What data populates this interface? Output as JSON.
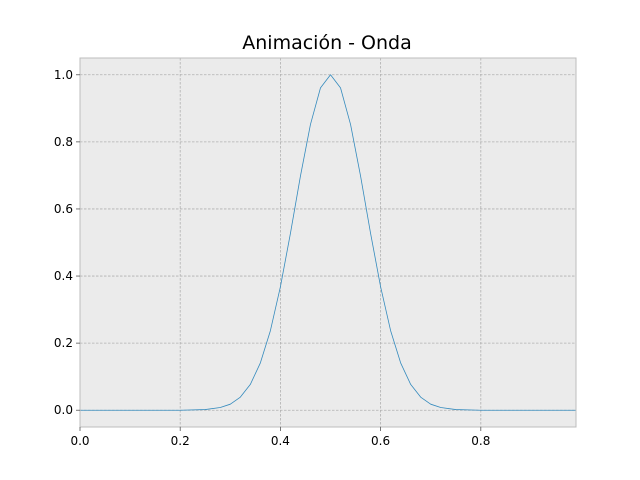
{
  "chart_data": {
    "type": "line",
    "title": "Animación - Onda",
    "xlabel": "",
    "ylabel": "",
    "xlim": [
      0.0,
      0.99
    ],
    "ylim": [
      -0.05,
      1.05
    ],
    "grid": true,
    "colors": {
      "background": "#ebebeb",
      "grid": "#b0b0b0",
      "line": "#348abd",
      "spine": "#bcbcbc"
    },
    "x_ticks": [
      {
        "value": 0.0,
        "label": "0.0"
      },
      {
        "value": 0.2,
        "label": "0.2"
      },
      {
        "value": 0.4,
        "label": "0.4"
      },
      {
        "value": 0.6,
        "label": "0.6"
      },
      {
        "value": 0.8,
        "label": "0.8"
      }
    ],
    "y_ticks": [
      {
        "value": 0.0,
        "label": "0.0"
      },
      {
        "value": 0.2,
        "label": "0.2"
      },
      {
        "value": 0.4,
        "label": "0.4"
      },
      {
        "value": 0.6,
        "label": "0.6"
      },
      {
        "value": 0.8,
        "label": "0.8"
      },
      {
        "value": 1.0,
        "label": "1.0"
      }
    ],
    "series": [
      {
        "x": [
          0.0,
          0.2,
          0.25,
          0.28,
          0.3,
          0.32,
          0.34,
          0.36,
          0.38,
          0.4,
          0.42,
          0.44,
          0.46,
          0.48,
          0.5,
          0.52,
          0.54,
          0.56,
          0.58,
          0.6,
          0.62,
          0.64,
          0.66,
          0.68,
          0.7,
          0.72,
          0.75,
          0.8,
          0.99
        ],
        "y": [
          0.0,
          0.0,
          0.002,
          0.008,
          0.018,
          0.039,
          0.077,
          0.141,
          0.237,
          0.368,
          0.527,
          0.698,
          0.852,
          0.961,
          1.0,
          0.961,
          0.852,
          0.698,
          0.527,
          0.368,
          0.237,
          0.141,
          0.077,
          0.039,
          0.018,
          0.008,
          0.002,
          0.0,
          0.0
        ]
      }
    ]
  }
}
